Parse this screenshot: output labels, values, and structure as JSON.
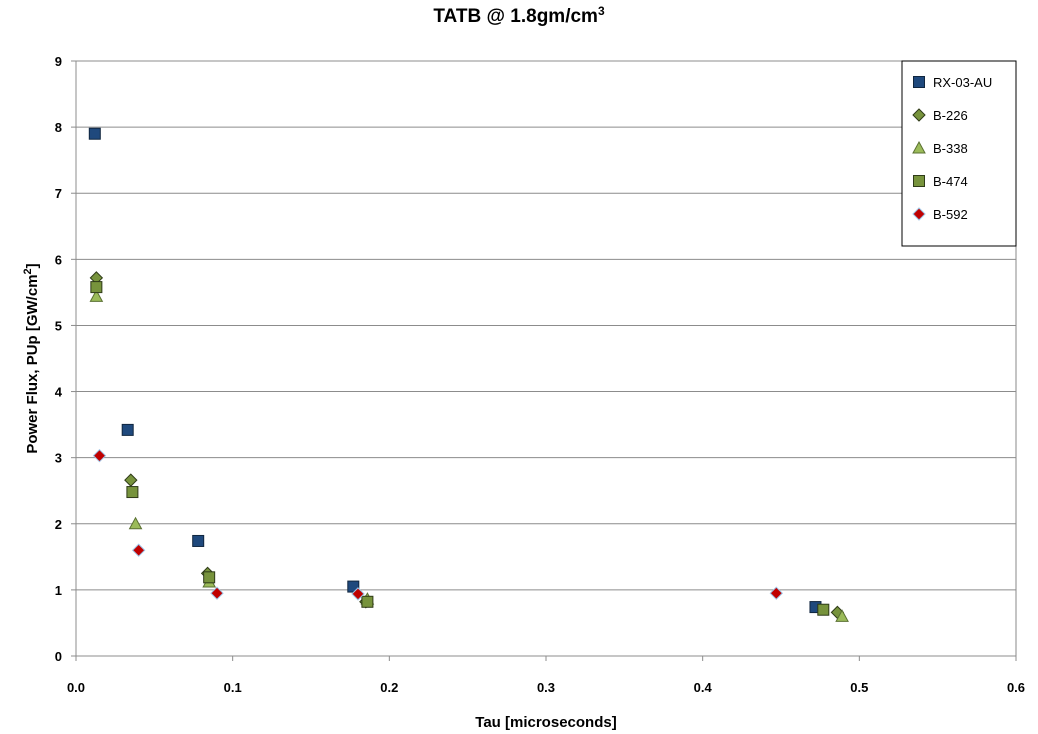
{
  "chart_data": {
    "type": "scatter",
    "title": "TATB @ 1.8gm/cm",
    "title_superscript": "3",
    "xlabel": "Tau [microseconds]",
    "ylabel": "Power Flux, PUp [GW/cm",
    "ylabel_superscript": "2",
    "ylabel_suffix": "]",
    "xlim": [
      0,
      0.6
    ],
    "ylim": [
      0,
      9
    ],
    "x_ticks": [
      "0.0",
      "0.1",
      "0.2",
      "0.3",
      "0.4",
      "0.5",
      "0.6"
    ],
    "y_ticks": [
      "0",
      "1",
      "2",
      "3",
      "4",
      "5",
      "6",
      "7",
      "8",
      "9"
    ],
    "x_tick_values": [
      0,
      0.1,
      0.2,
      0.3,
      0.4,
      0.5,
      0.6
    ],
    "y_tick_values": [
      0,
      1,
      2,
      3,
      4,
      5,
      6,
      7,
      8,
      9
    ],
    "grid": "horizontal",
    "legend_position": "top-right",
    "series": [
      {
        "name": "RX-03-AU",
        "marker": "square",
        "color": "#1F497D",
        "stroke": "#10263f",
        "points": [
          {
            "x": 0.012,
            "y": 7.9
          },
          {
            "x": 0.033,
            "y": 3.42
          },
          {
            "x": 0.078,
            "y": 1.74
          },
          {
            "x": 0.177,
            "y": 1.05
          },
          {
            "x": 0.472,
            "y": 0.74
          }
        ]
      },
      {
        "name": "B-226",
        "marker": "diamond",
        "color": "#77933C",
        "stroke": "#2f3b18",
        "points": [
          {
            "x": 0.013,
            "y": 5.72
          },
          {
            "x": 0.035,
            "y": 2.66
          },
          {
            "x": 0.084,
            "y": 1.25
          },
          {
            "x": 0.185,
            "y": 0.82
          },
          {
            "x": 0.486,
            "y": 0.66
          }
        ]
      },
      {
        "name": "B-338",
        "marker": "triangle",
        "color": "#9BBB59",
        "stroke": "#5a7032",
        "points": [
          {
            "x": 0.013,
            "y": 5.44
          },
          {
            "x": 0.038,
            "y": 2.0
          },
          {
            "x": 0.085,
            "y": 1.12
          },
          {
            "x": 0.186,
            "y": 0.86
          },
          {
            "x": 0.489,
            "y": 0.6
          }
        ]
      },
      {
        "name": "B-474",
        "marker": "square",
        "color": "#77933C",
        "stroke": "#2f3b18",
        "points": [
          {
            "x": 0.013,
            "y": 5.58
          },
          {
            "x": 0.036,
            "y": 2.48
          },
          {
            "x": 0.085,
            "y": 1.19
          },
          {
            "x": 0.186,
            "y": 0.82
          },
          {
            "x": 0.477,
            "y": 0.7
          }
        ]
      },
      {
        "name": "B-592",
        "marker": "diamond",
        "color": "#C00000",
        "stroke": "#9DC3E6",
        "points": [
          {
            "x": 0.015,
            "y": 3.03
          },
          {
            "x": 0.04,
            "y": 1.6
          },
          {
            "x": 0.09,
            "y": 0.95
          },
          {
            "x": 0.18,
            "y": 0.94
          },
          {
            "x": 0.447,
            "y": 0.95
          }
        ]
      }
    ]
  }
}
